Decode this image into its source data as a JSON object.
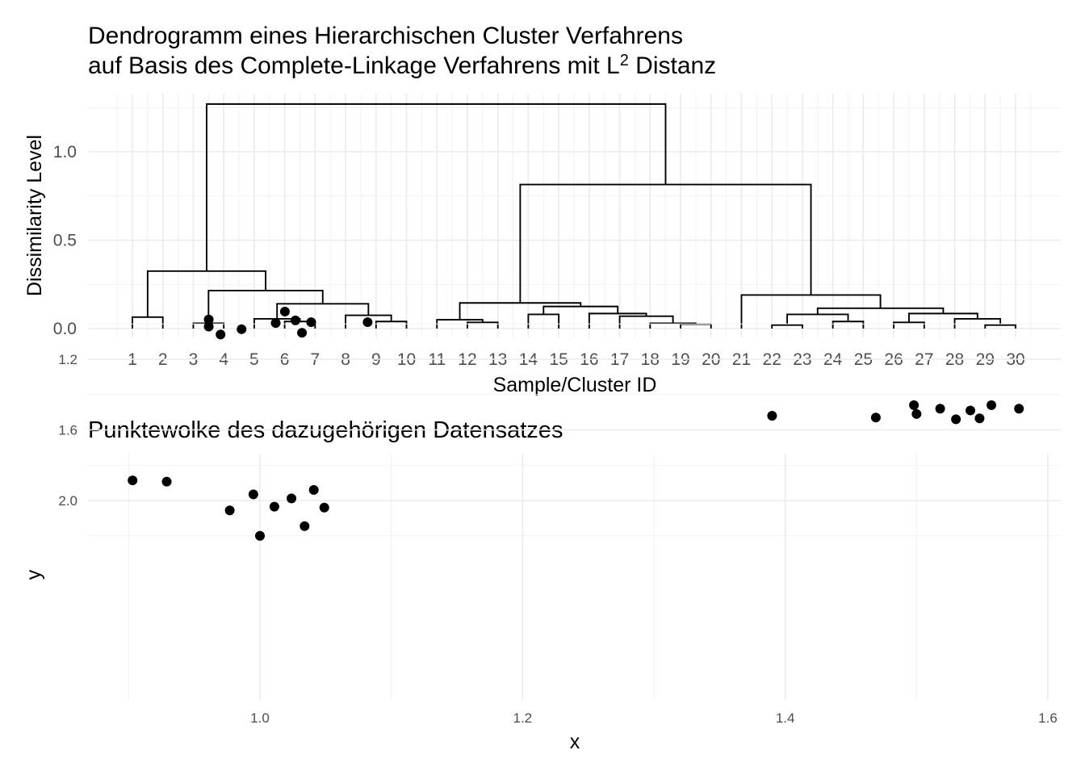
{
  "chart_data": [
    {
      "type": "dendrogram",
      "title_line1": "Dendrogramm eines Hierarchischen Cluster Verfahrens",
      "title_line2_prefix": "auf Basis des Complete-Linkage Verfahrens mit L",
      "title_line2_sup": "2",
      "title_line2_suffix": " Distanz",
      "xlabel": "Sample/Cluster ID",
      "ylabel": "Dissimilarity Level",
      "ylim": [
        0,
        1.25
      ],
      "yticks": [
        0.0,
        0.5,
        1.0
      ],
      "ytick_labels": [
        "0.0",
        "0.5",
        "1.0"
      ],
      "leaves": [
        "1",
        "2",
        "3",
        "4",
        "5",
        "6",
        "7",
        "8",
        "9",
        "10",
        "11",
        "12",
        "13",
        "14",
        "15",
        "16",
        "17",
        "18",
        "19",
        "20",
        "21",
        "22",
        "23",
        "24",
        "25",
        "26",
        "27",
        "28",
        "29",
        "30"
      ],
      "merges": [
        {
          "left": 1,
          "right": 2,
          "height": 0.065
        },
        {
          "left": 3,
          "right": 4,
          "height": 0.03
        },
        {
          "left": 6,
          "right": 7,
          "height": 0.04
        },
        {
          "left": 5,
          "right": 6.5,
          "height": 0.055
        },
        {
          "left": 9,
          "right": 10,
          "height": 0.04
        },
        {
          "left": 8,
          "right": 9.5,
          "height": 0.075
        },
        {
          "left": 5.75,
          "right": 8.75,
          "height": 0.14
        },
        {
          "left": 3.5,
          "right": 7.25,
          "height": 0.215
        },
        {
          "left": 1.5,
          "right": 5.375,
          "height": 0.325
        },
        {
          "left": 12,
          "right": 13,
          "height": 0.035
        },
        {
          "left": 11,
          "right": 12.5,
          "height": 0.05
        },
        {
          "left": 19,
          "right": 20,
          "height": 0.025
        },
        {
          "left": 18,
          "right": 19.5,
          "height": 0.03
        },
        {
          "left": 17,
          "right": 18.75,
          "height": 0.07
        },
        {
          "left": 16,
          "right": 17.875,
          "height": 0.085
        },
        {
          "left": 14,
          "right": 15,
          "height": 0.08
        },
        {
          "left": 14.5,
          "right": 16.9375,
          "height": 0.125
        },
        {
          "left": 11.75,
          "right": 15.71875,
          "height": 0.145
        },
        {
          "left": 22,
          "right": 23,
          "height": 0.02
        },
        {
          "left": 24,
          "right": 25,
          "height": 0.04
        },
        {
          "left": 22.5,
          "right": 24.5,
          "height": 0.08
        },
        {
          "left": 26,
          "right": 27,
          "height": 0.035
        },
        {
          "left": 29,
          "right": 30,
          "height": 0.02
        },
        {
          "left": 28,
          "right": 29.5,
          "height": 0.055
        },
        {
          "left": 26.5,
          "right": 28.75,
          "height": 0.085
        },
        {
          "left": 23.5,
          "right": 27.625,
          "height": 0.115
        },
        {
          "left": 21,
          "right": 25.5625,
          "height": 0.19
        },
        {
          "left": 13.734375,
          "right": 23.28125,
          "height": 0.815
        },
        {
          "left": 3.4375,
          "right": 18.5078125,
          "height": 1.27
        }
      ]
    },
    {
      "type": "scatter",
      "title": "Punktewolke des dazugehörigen Datensatzes",
      "xlabel": "x",
      "ylabel": "y",
      "xlim": [
        0.88,
        1.61
      ],
      "ylim": [
        0.93,
        2.24
      ],
      "xticks": [
        1.0,
        1.2,
        1.4,
        1.6
      ],
      "xtick_labels": [
        "1.0",
        "1.2",
        "1.4",
        "1.6"
      ],
      "yticks": [
        1.2,
        1.6,
        2.0
      ],
      "ytick_labels": [
        "1.2",
        "1.6",
        "2.0"
      ],
      "x": [
        0.903,
        0.929,
        0.977,
        0.995,
        1.0,
        1.011,
        1.024,
        1.034,
        1.041,
        1.049,
        0.961,
        0.961,
        0.97,
        0.986,
        1.012,
        1.019,
        1.027,
        1.032,
        1.039,
        1.082,
        1.39,
        1.469,
        1.498,
        1.5,
        1.518,
        1.53,
        1.541,
        1.548,
        1.557,
        1.578
      ],
      "y": [
        1.886,
        1.893,
        2.056,
        1.965,
        2.2,
        2.035,
        1.988,
        2.145,
        1.94,
        2.04,
        1.015,
        0.975,
        1.06,
        1.03,
        0.995,
        0.93,
        0.98,
        1.05,
        0.99,
        0.99,
        1.52,
        1.53,
        1.46,
        1.51,
        1.48,
        1.54,
        1.49,
        1.535,
        1.46,
        1.48
      ]
    }
  ]
}
